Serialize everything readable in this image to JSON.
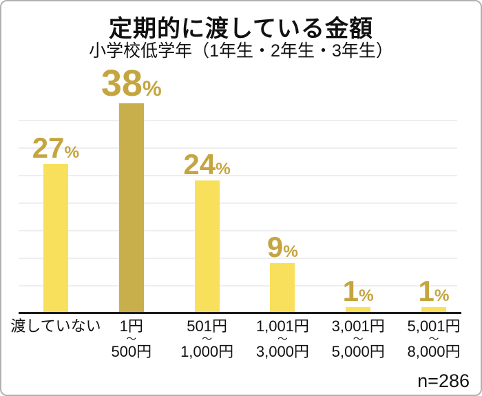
{
  "header": {
    "title": "定期的に渡している金額",
    "subtitle": "小学校低学年（1年生・2年生・3年生）"
  },
  "chart_data": {
    "type": "bar",
    "title": "定期的に渡している金額",
    "subtitle": "小学校低学年（1年生・2年生・3年生）",
    "categories": [
      "渡していない",
      "1円〜500円",
      "501円〜1,000円",
      "1,001円〜3,000円",
      "3,001円〜5,000円",
      "5,001円〜8,000円"
    ],
    "category_lines": [
      [
        "渡していない"
      ],
      [
        "1円",
        "〜",
        "500円"
      ],
      [
        "501円",
        "〜",
        "1,000円"
      ],
      [
        "1,001円",
        "〜",
        "3,000円"
      ],
      [
        "3,001円",
        "〜",
        "5,000円"
      ],
      [
        "5,001円",
        "〜",
        "8,000円"
      ]
    ],
    "values": [
      27,
      38,
      24,
      9,
      1,
      1
    ],
    "value_labels": [
      "27%",
      "38%",
      "24%",
      "9%",
      "1%",
      "1%"
    ],
    "unit": "%",
    "highlight_index": 1,
    "xlabel": "",
    "ylabel": "",
    "ylim": [
      0,
      40
    ],
    "gridlines_percent": [
      5,
      10,
      15,
      20,
      25,
      30,
      35
    ],
    "grid": "on",
    "legend": "none",
    "sample_size": "n=286",
    "colors": {
      "bar": "#F9E05C",
      "bar_highlight": "#C9AF4C",
      "value_label": "#C4A53F",
      "axis": "#1C1C1C",
      "grid": "#EEEEEE",
      "text": "#111111",
      "frame_border": "#B0B0B0",
      "background": "#FFFFFF"
    }
  }
}
